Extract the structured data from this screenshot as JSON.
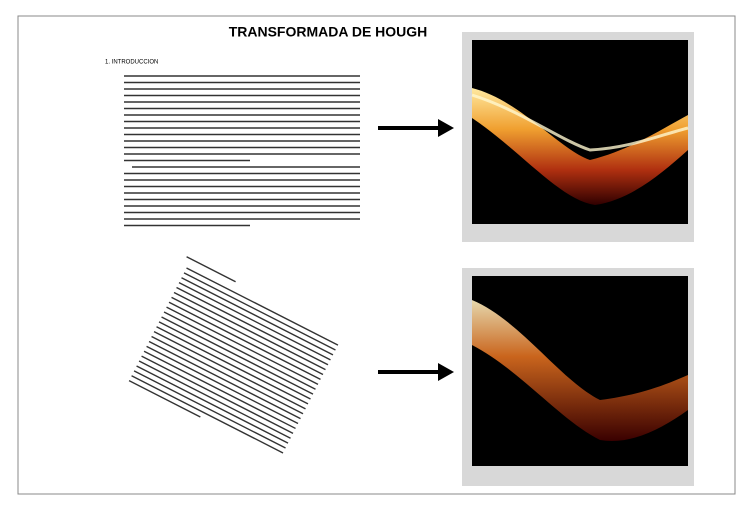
{
  "header": {
    "title": "TRANSFORMADA DE HOUGH"
  },
  "document": {
    "section": "1. INTRODUCCION"
  }
}
